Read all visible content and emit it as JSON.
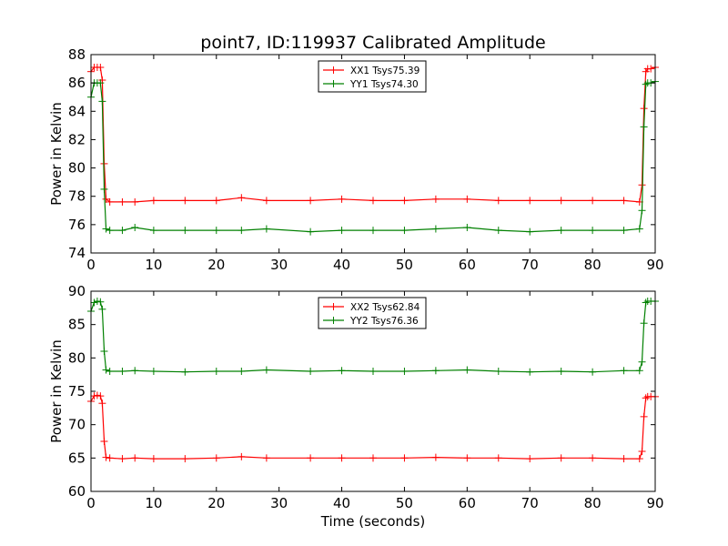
{
  "figure": {
    "title": "point7, ID:119937 Calibrated Amplitude",
    "xlabel": "Time (seconds)"
  },
  "chart_data": [
    {
      "type": "line",
      "ylabel": "Power in Kelvin",
      "xlim": [
        0,
        90
      ],
      "ylim": [
        74,
        88
      ],
      "xticks": [
        0,
        10,
        20,
        30,
        40,
        50,
        60,
        70,
        80,
        90
      ],
      "yticks": [
        74,
        76,
        78,
        80,
        82,
        84,
        86,
        88
      ],
      "legend_position": "top-center",
      "series": [
        {
          "name": "XX1 Tsys75.39",
          "color": "#ff0000",
          "marker": "plus",
          "x": [
            0,
            0.5,
            1,
            1.5,
            1.8,
            2.1,
            2.4,
            3,
            5,
            7,
            10,
            15,
            20,
            24,
            28,
            35,
            40,
            45,
            50,
            55,
            60,
            65,
            70,
            75,
            80,
            85,
            87.5,
            87.9,
            88.2,
            88.5,
            88.8,
            89.3,
            90
          ],
          "y": [
            86.8,
            87.1,
            87.1,
            87.1,
            86.2,
            80.3,
            77.8,
            77.6,
            77.6,
            77.6,
            77.7,
            77.7,
            77.7,
            77.9,
            77.7,
            77.7,
            77.8,
            77.7,
            77.7,
            77.8,
            77.8,
            77.7,
            77.7,
            77.7,
            77.7,
            77.7,
            77.6,
            78.8,
            84.2,
            86.8,
            87.0,
            87.0,
            87.1
          ]
        },
        {
          "name": "YY1 Tsys74.30",
          "color": "#008000",
          "marker": "plus",
          "x": [
            0,
            0.5,
            1,
            1.5,
            1.8,
            2.1,
            2.4,
            3,
            5,
            7,
            10,
            15,
            20,
            24,
            28,
            35,
            40,
            45,
            50,
            55,
            60,
            65,
            70,
            75,
            80,
            85,
            87.5,
            87.9,
            88.2,
            88.5,
            88.8,
            89.3,
            90
          ],
          "y": [
            85.0,
            86.0,
            86.0,
            86.0,
            84.7,
            78.5,
            75.7,
            75.6,
            75.6,
            75.8,
            75.6,
            75.6,
            75.6,
            75.6,
            75.7,
            75.5,
            75.6,
            75.6,
            75.6,
            75.7,
            75.8,
            75.6,
            75.5,
            75.6,
            75.6,
            75.6,
            75.7,
            77.0,
            82.9,
            85.9,
            86.0,
            86.0,
            86.1
          ]
        }
      ]
    },
    {
      "type": "line",
      "ylabel": "Power in Kelvin",
      "xlim": [
        0,
        90
      ],
      "ylim": [
        60,
        90
      ],
      "xticks": [
        0,
        10,
        20,
        30,
        40,
        50,
        60,
        70,
        80,
        90
      ],
      "yticks": [
        60,
        65,
        70,
        75,
        80,
        85,
        90
      ],
      "legend_position": "top-center",
      "series": [
        {
          "name": "XX2 Tsys62.84",
          "color": "#ff0000",
          "marker": "plus",
          "x": [
            0,
            0.5,
            1,
            1.5,
            1.8,
            2.1,
            2.4,
            3,
            5,
            7,
            10,
            15,
            20,
            24,
            28,
            35,
            40,
            45,
            50,
            55,
            60,
            65,
            70,
            75,
            80,
            85,
            87.5,
            87.9,
            88.2,
            88.5,
            88.8,
            89.3,
            90
          ],
          "y": [
            73.5,
            74.3,
            74.4,
            74.3,
            73.2,
            67.5,
            65.1,
            65.0,
            64.9,
            65.0,
            64.9,
            64.9,
            65.0,
            65.2,
            65.0,
            65.0,
            65.0,
            65.0,
            65.0,
            65.1,
            65.0,
            65.0,
            64.9,
            65.0,
            65.0,
            64.9,
            64.9,
            66.0,
            71.2,
            74.0,
            74.2,
            74.2,
            74.2
          ]
        },
        {
          "name": "YY2 Tsys76.36",
          "color": "#008000",
          "marker": "plus",
          "x": [
            0,
            0.5,
            1,
            1.5,
            1.8,
            2.1,
            2.4,
            3,
            5,
            7,
            10,
            15,
            20,
            24,
            28,
            35,
            40,
            45,
            50,
            55,
            60,
            65,
            70,
            75,
            80,
            85,
            87.5,
            87.9,
            88.2,
            88.5,
            88.8,
            89.3,
            90
          ],
          "y": [
            87.0,
            88.3,
            88.5,
            88.4,
            87.3,
            81.0,
            78.2,
            78.0,
            78.0,
            78.1,
            78.0,
            77.9,
            78.0,
            78.0,
            78.2,
            78.0,
            78.1,
            78.0,
            78.0,
            78.1,
            78.2,
            78.0,
            77.9,
            78.0,
            77.9,
            78.1,
            78.1,
            79.4,
            85.2,
            88.3,
            88.5,
            88.5,
            88.5
          ]
        }
      ]
    }
  ]
}
